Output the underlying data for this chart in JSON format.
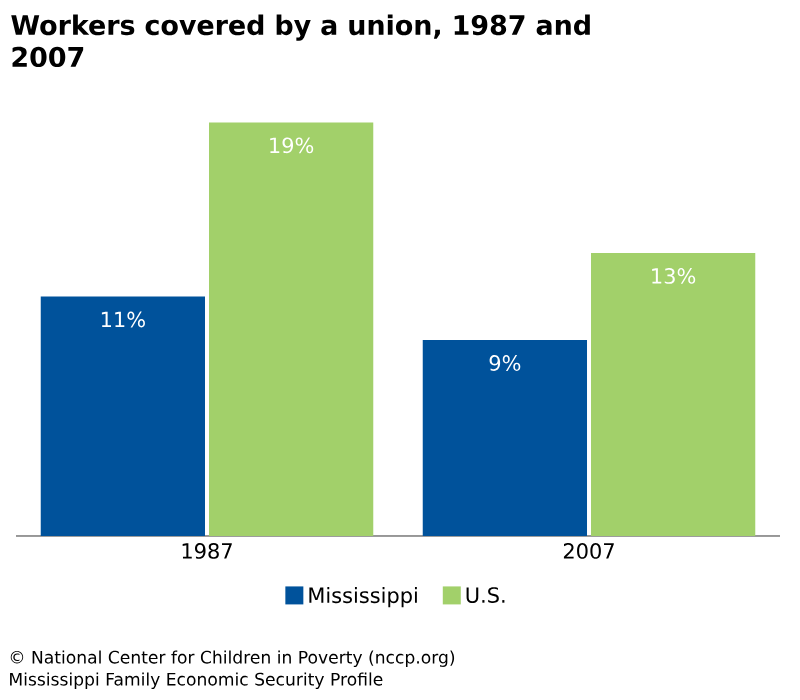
{
  "chart_data": {
    "type": "bar",
    "title": "Workers covered by a union, 1987 and 2007",
    "categories": [
      "1987",
      "2007"
    ],
    "series": [
      {
        "name": "Mississippi",
        "color": "#00529b",
        "values": [
          11,
          9
        ],
        "value_labels": [
          "11%",
          "9%"
        ]
      },
      {
        "name": "U.S.",
        "color": "#a2d06a",
        "values": [
          19,
          13
        ],
        "value_labels": [
          "19%",
          "13%"
        ]
      }
    ],
    "legend": "bottom",
    "annotations": [
      "© National Center for Children in Poverty (nccp.org)",
      "Mississippi Family Economic Security Profile"
    ]
  }
}
